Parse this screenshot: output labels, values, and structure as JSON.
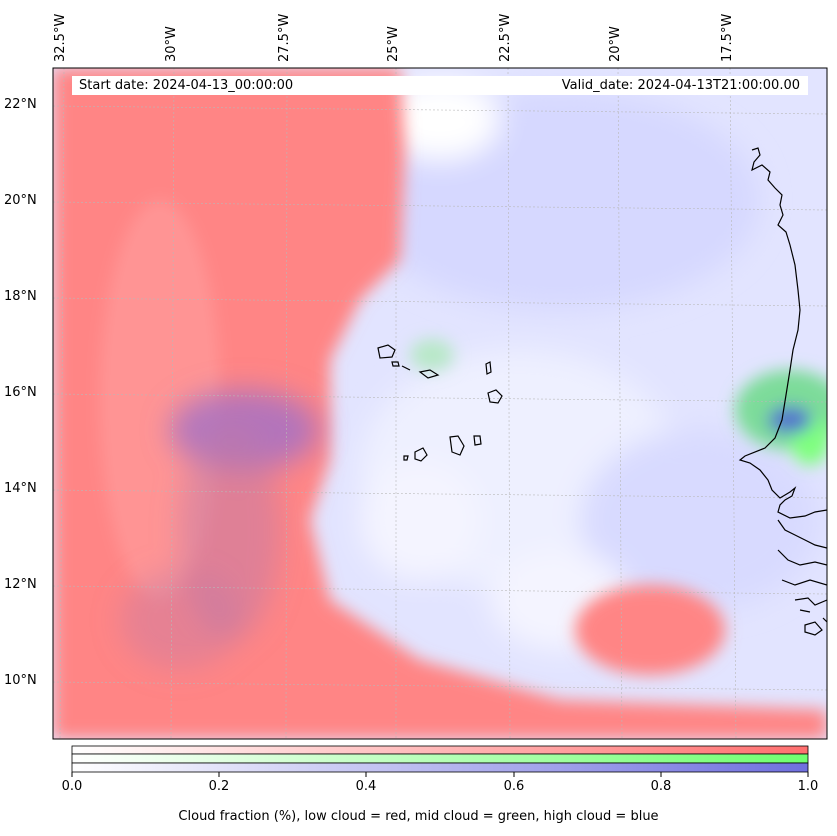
{
  "map": {
    "lon_labels": [
      "32.5°W",
      "30°W",
      "27.5°W",
      "25°W",
      "22.5°W",
      "20°W",
      "17.5°W"
    ],
    "lat_labels": [
      "22°N",
      "20°N",
      "18°N",
      "16°N",
      "14°N",
      "12°N",
      "10°N"
    ],
    "start_date": "Start date: 2024-04-13_00:00:00",
    "valid_date": "Valid_date: 2024-04-13T21:00:00.00",
    "colors": {
      "low_cloud": "#ff7f7f",
      "mid_cloud": "#7fff7f",
      "high_cloud": "#7f7fdf",
      "coastline": "#000000"
    }
  },
  "colorbar": {
    "ticks": [
      "0.0",
      "0.2",
      "0.4",
      "0.6",
      "0.8",
      "1.0"
    ],
    "label": "Cloud fraction (%), low cloud = red, mid cloud = green, high cloud = blue"
  }
}
